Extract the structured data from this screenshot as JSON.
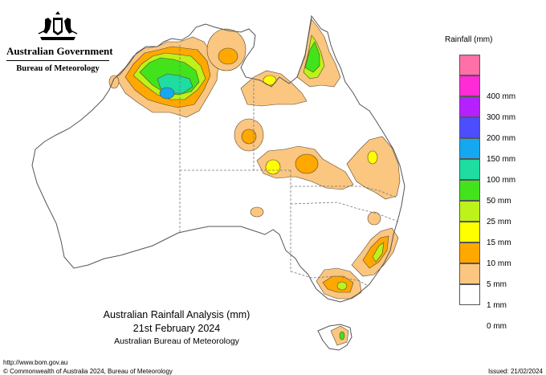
{
  "government": {
    "name": "Australian Government",
    "agency": "Bureau of Meteorology"
  },
  "legend": {
    "title": "Rainfall (mm)",
    "items": [
      {
        "label": "",
        "color": "#ff6fa8"
      },
      {
        "label": "400 mm",
        "color": "#ff2bd6"
      },
      {
        "label": "300 mm",
        "color": "#b520ff"
      },
      {
        "label": "200 mm",
        "color": "#4b4dff"
      },
      {
        "label": "150 mm",
        "color": "#14a8f0"
      },
      {
        "label": "100 mm",
        "color": "#1fdca0"
      },
      {
        "label": "50 mm",
        "color": "#43e31c"
      },
      {
        "label": "25 mm",
        "color": "#bdf21a"
      },
      {
        "label": "15 mm",
        "color": "#ffff00"
      },
      {
        "label": "10 mm",
        "color": "#ffa800"
      },
      {
        "label": "5 mm",
        "color": "#fac680"
      },
      {
        "label": "1 mm",
        "color": "#ffffff"
      },
      {
        "label": "0 mm",
        "color": null
      }
    ]
  },
  "caption": {
    "title": "Australian Rainfall Analysis (mm)",
    "date": "21st February 2024",
    "org": "Australian Bureau of Meteorology"
  },
  "footer": {
    "url": "http://www.bom.gov.au",
    "copyright": "© Commonwealth of Australia 2024, Bureau of Meteorology",
    "issued": "Issued: 21/02/2024"
  },
  "map": {
    "colors": {
      "land": "#ffffff",
      "outline": "#555555",
      "border": "#777777",
      "contour": "#5a4630",
      "band_1": "#fac680",
      "band_5": "#ffa800",
      "band_10": "#ffff00",
      "band_15": "#bdf21a",
      "band_25": "#43e31c",
      "band_50": "#1fdca0",
      "band_100": "#14a8f0"
    }
  }
}
